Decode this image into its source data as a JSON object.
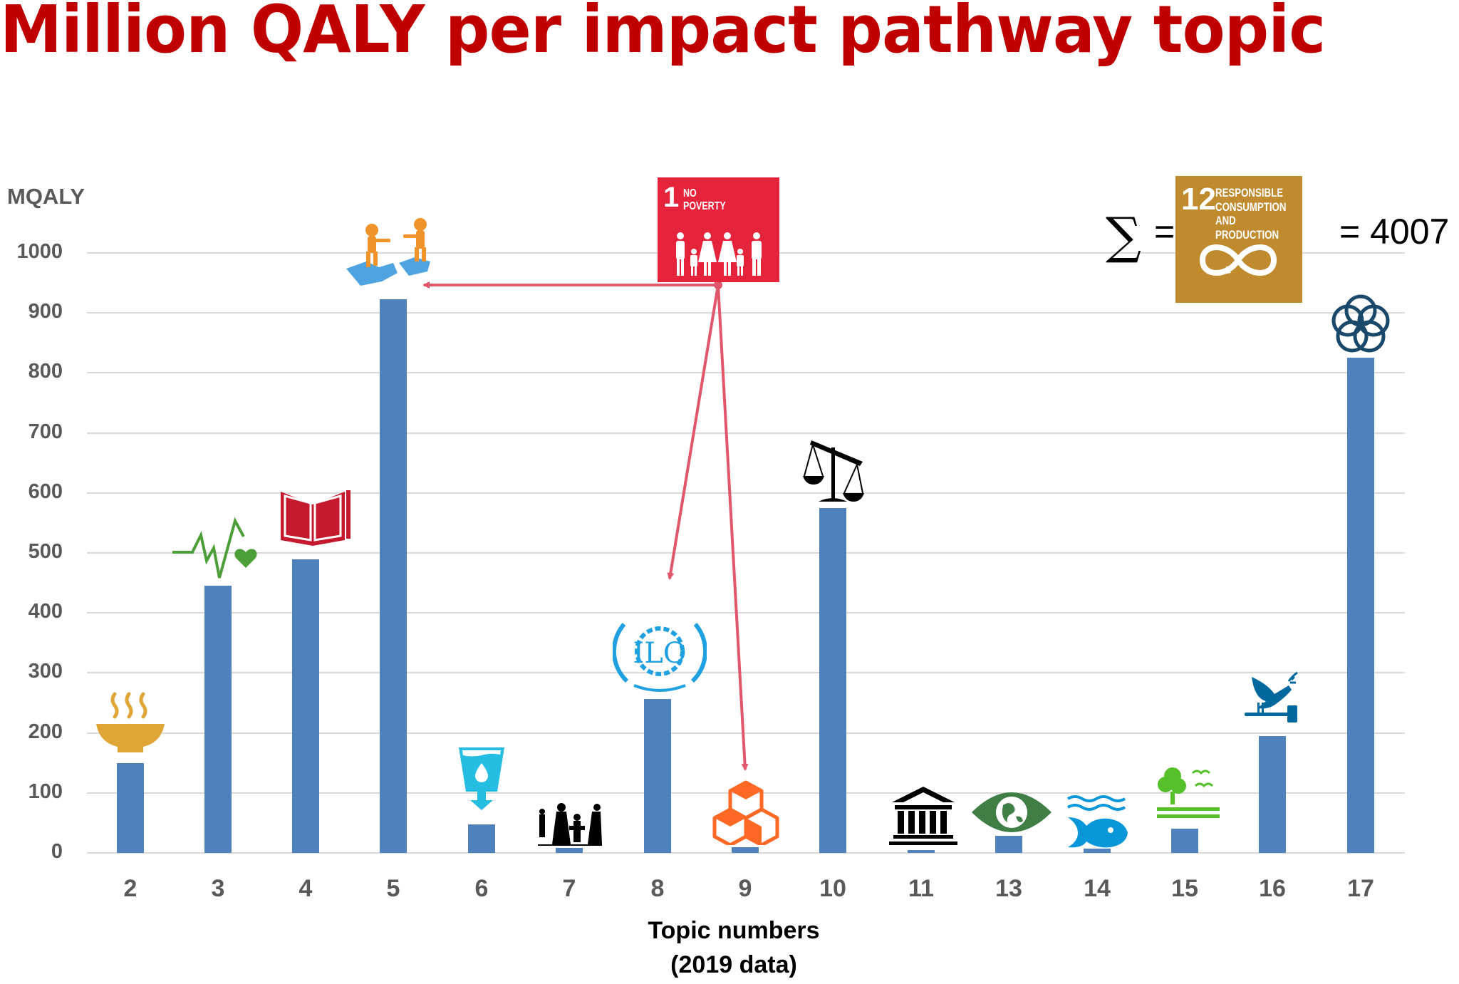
{
  "title": "Million QALY per impact pathway topic",
  "y_axis": {
    "label": "MQALY",
    "ticks": [
      "1000",
      "900",
      "800",
      "700",
      "600",
      "500",
      "400",
      "300",
      "200",
      "100",
      "0"
    ]
  },
  "x_axis": {
    "label_line1": "Topic numbers",
    "label_line2": "(2019 data)",
    "ticks": [
      "2",
      "3",
      "4",
      "5",
      "6",
      "7",
      "8",
      "9",
      "10",
      "11",
      "13",
      "14",
      "15",
      "16",
      "17"
    ]
  },
  "annotations": {
    "sdg1": {
      "number": "1",
      "line1": "NO",
      "line2": "POVERTY",
      "color": "#e5243b"
    },
    "sdg12": {
      "number": "12",
      "line1": "RESPONSIBLE",
      "line2": "CONSUMPTION",
      "line3": "AND PRODUCTION",
      "color": "#bf8b2e"
    },
    "sum_symbol": "∑",
    "equals": "=",
    "total_text": "= 4007",
    "arrows_from_sdg1_to": [
      "5",
      "8",
      "9"
    ],
    "arrow_color": "#e0566a"
  },
  "icons": {
    "2": "food-bowl-icon",
    "3": "heartbeat-icon",
    "4": "book-pencil-icon",
    "5": "puzzle-people-icon",
    "6": "water-glass-icon",
    "7": "refugee-family-icon",
    "8": "ilo-logo-icon",
    "9": "cubes-icon",
    "10": "scales-icon",
    "11": "building-icon",
    "13": "eye-globe-icon",
    "14": "fish-waves-icon",
    "15": "tree-birds-icon",
    "16": "dove-gavel-icon",
    "17": "flower-rings-icon"
  },
  "colors": {
    "bar": "#4f81bd",
    "title": "#c00000",
    "axis_text": "#595959",
    "grid": "#d9d9d9"
  },
  "chart_data": {
    "type": "bar",
    "title": "Million QALY per impact pathway topic",
    "xlabel": "Topic numbers (2019 data)",
    "ylabel": "MQALY",
    "categories": [
      "2",
      "3",
      "4",
      "5",
      "6",
      "7",
      "8",
      "9",
      "10",
      "11",
      "13",
      "14",
      "15",
      "16",
      "17"
    ],
    "values": [
      150,
      445,
      489,
      923,
      48,
      8,
      256,
      10,
      575,
      5,
      28,
      7,
      40,
      195,
      826
    ],
    "ylim": [
      0,
      1000
    ],
    "yticks": [
      0,
      100,
      200,
      300,
      400,
      500,
      600,
      700,
      800,
      900,
      1000
    ],
    "grid": true,
    "legend": null,
    "annotations": [
      "SDG 1 No Poverty arrows to topics 5, 8, 9",
      "Sum = SDG 12 Responsible Consumption and Production = 4007"
    ]
  }
}
